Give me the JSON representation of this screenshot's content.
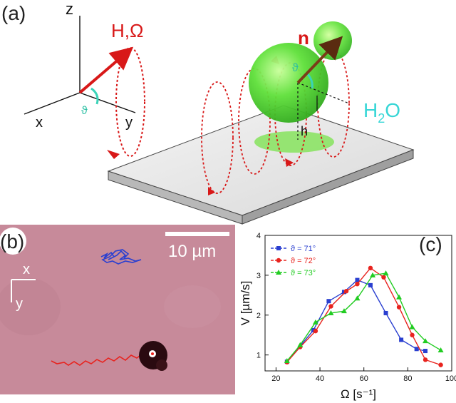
{
  "panels": {
    "a": {
      "label": "(a)"
    },
    "b": {
      "label": "(b)"
    },
    "c": {
      "label": "(c)"
    }
  },
  "axes3d": {
    "z": "z",
    "x": "x",
    "y": "y",
    "theta": "ϑ"
  },
  "field_label": "H,Ω",
  "particle": {
    "n_label": "n",
    "theta": "ϑ",
    "h_label": "h"
  },
  "water_label": {
    "main": "H",
    "sub": "2",
    "tail": "O"
  },
  "micrograph": {
    "scalebar_label": "10 µm",
    "axis_x": "x",
    "axis_y": "y",
    "colors": {
      "background": "#c78a9a",
      "blue_trace": "#2a3fd0",
      "red_trace": "#e8231e"
    }
  },
  "chart_data": {
    "type": "line",
    "xlabel": "Ω [s⁻¹]",
    "ylabel": "V  [µm/s]",
    "xlim": [
      15,
      100
    ],
    "ylim": [
      0.6,
      4
    ],
    "xticks": [
      20,
      40,
      60,
      80,
      100
    ],
    "yticks": [
      1,
      2,
      3,
      4
    ],
    "legend_position": "top-left",
    "series": [
      {
        "name": "ϑ = 71°",
        "marker": "square",
        "color": "#2a3fd0",
        "x": [
          25,
          37,
          44,
          51,
          57,
          63,
          70,
          77,
          84,
          88
        ],
        "y": [
          0.83,
          1.62,
          2.35,
          2.58,
          2.88,
          2.75,
          2.05,
          1.38,
          1.15,
          1.1
        ]
      },
      {
        "name": "ϑ = 72°",
        "marker": "circle",
        "color": "#e8231e",
        "x": [
          25,
          31,
          38,
          45,
          52,
          57,
          63,
          69,
          76,
          82,
          88,
          95
        ],
        "y": [
          0.82,
          1.2,
          1.6,
          2.22,
          2.6,
          2.78,
          3.18,
          2.95,
          2.2,
          1.5,
          0.88,
          0.75
        ]
      },
      {
        "name": "ϑ = 73°",
        "marker": "triangle",
        "color": "#22cc22",
        "x": [
          25,
          31,
          38,
          45,
          51,
          57,
          64,
          70,
          76,
          82,
          88,
          95
        ],
        "y": [
          0.85,
          1.25,
          1.82,
          2.05,
          2.1,
          2.42,
          3.0,
          3.05,
          2.45,
          1.7,
          1.35,
          1.12
        ]
      }
    ]
  }
}
